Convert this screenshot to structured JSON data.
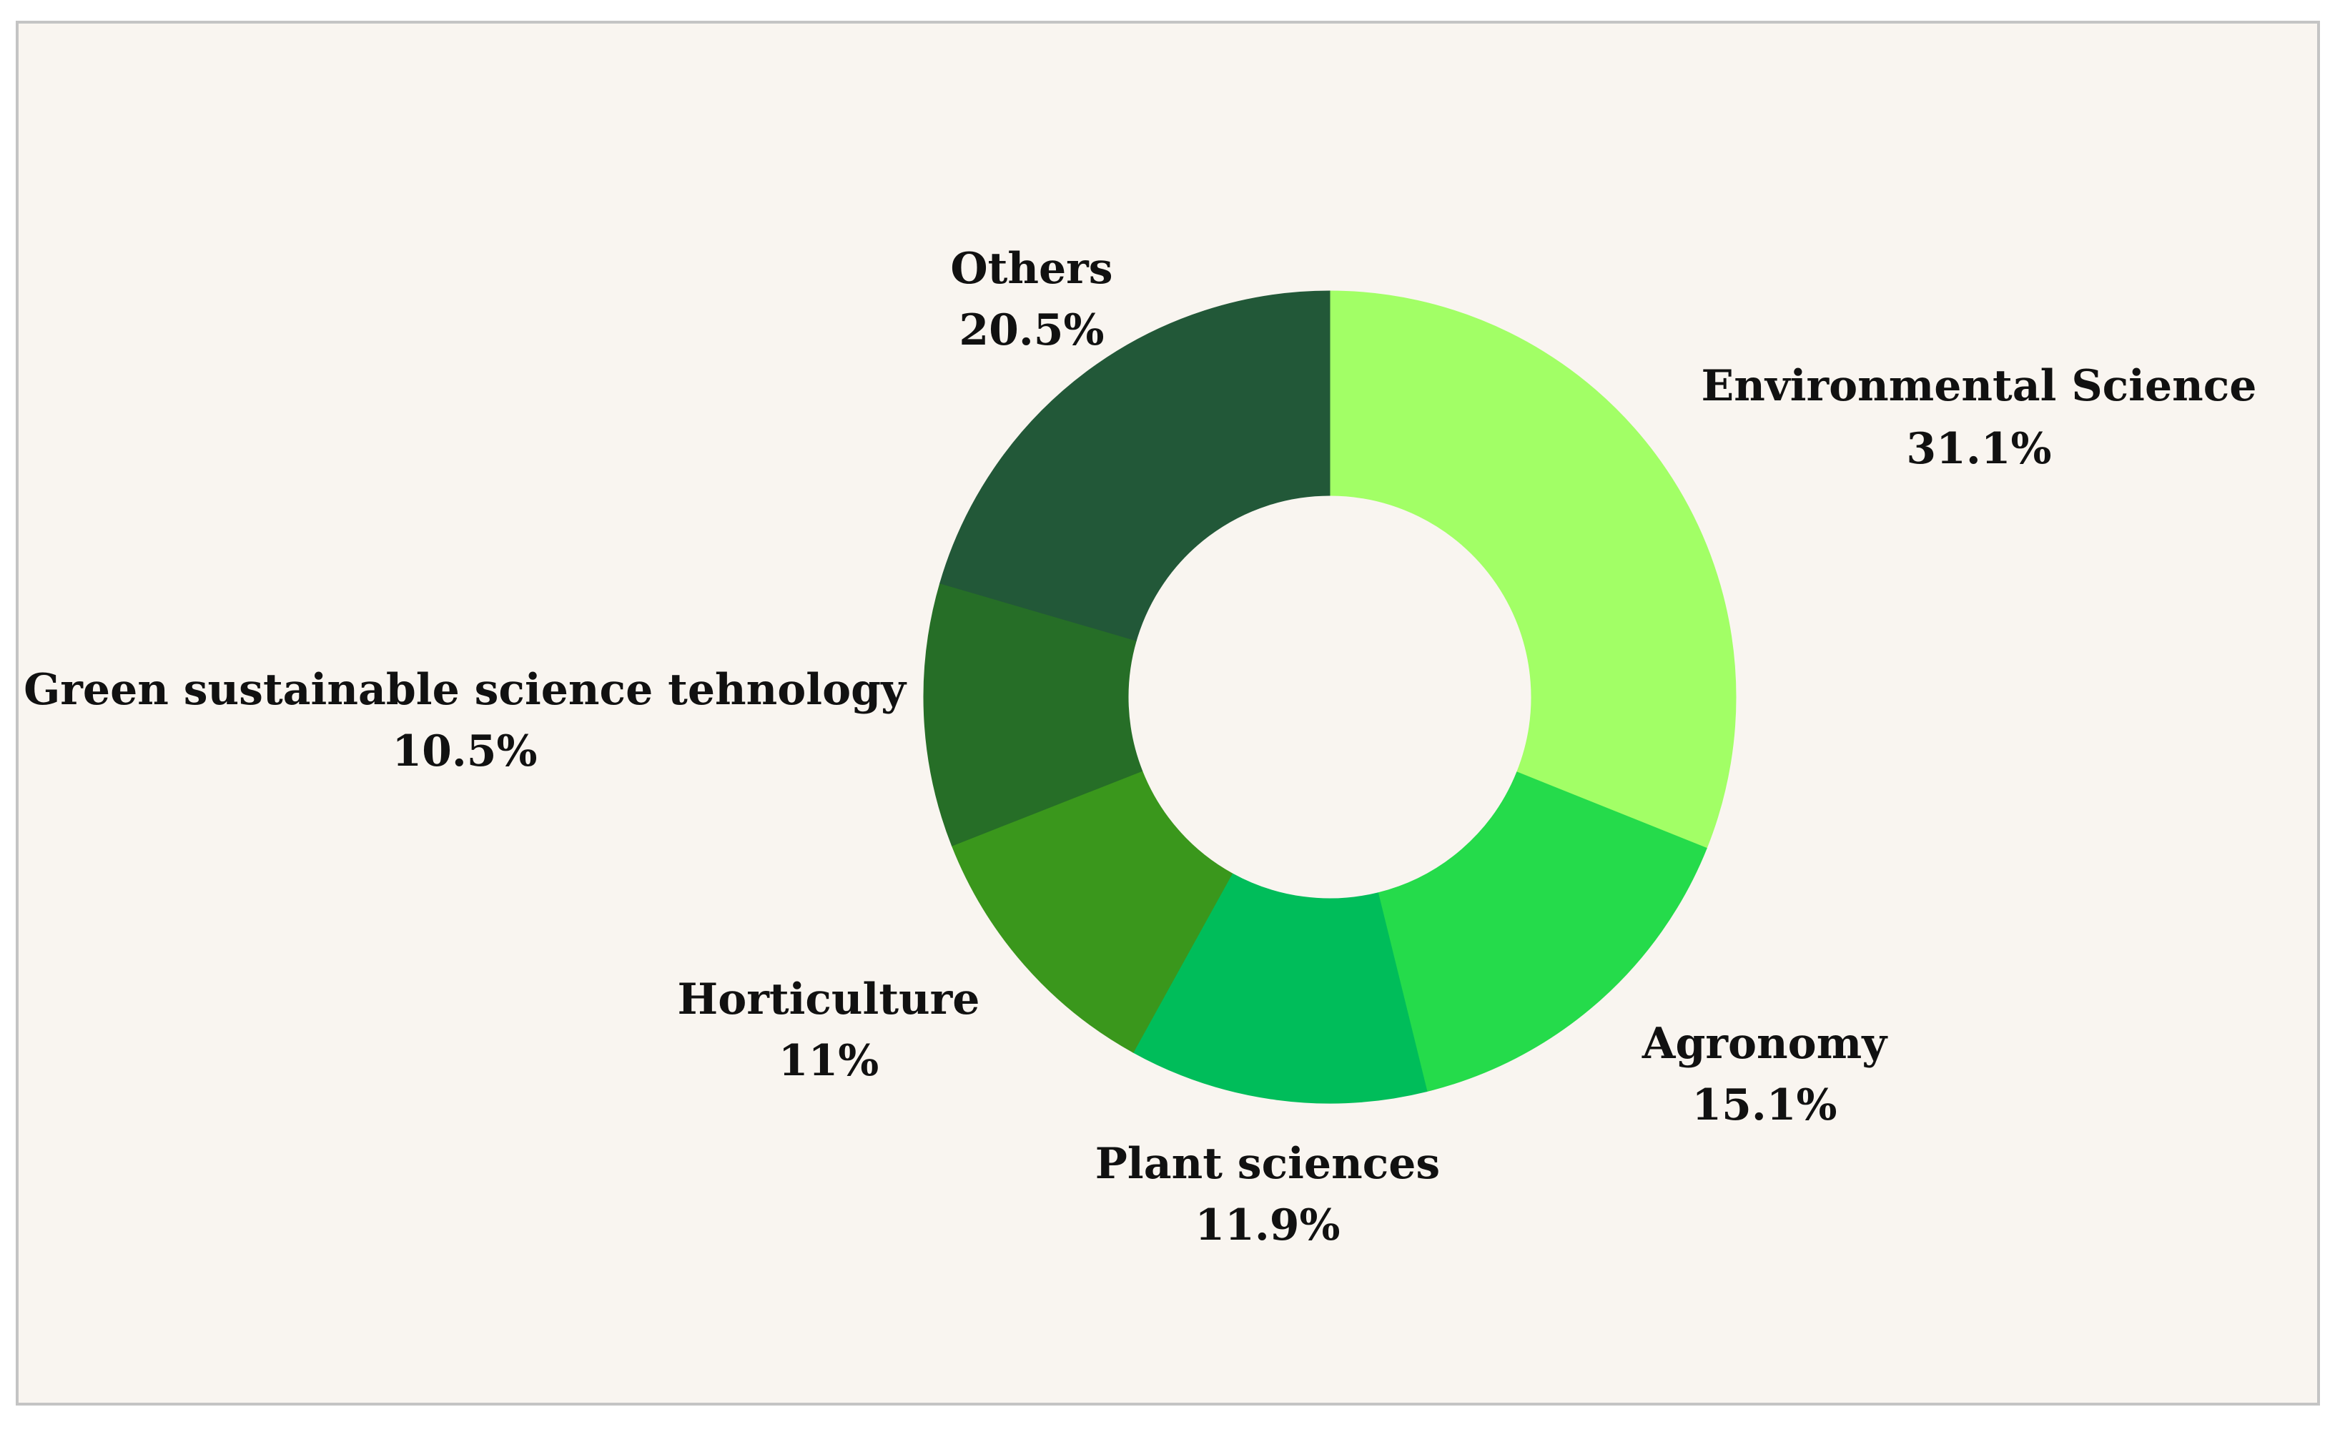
{
  "chart_data": {
    "type": "pie",
    "variant": "donut",
    "title": "",
    "slices": [
      {
        "label": "Environmental Science",
        "value": 31.1,
        "value_label": "31.1%",
        "color": "#a2ff66"
      },
      {
        "label": "Agronomy",
        "value": 15.1,
        "value_label": "15.1%",
        "color": "#25db4b"
      },
      {
        "label": "Plant sciences",
        "value": 11.9,
        "value_label": "11.9%",
        "color": "#00bd5a"
      },
      {
        "label": "Horticulture",
        "value": 11,
        "value_label": "11%",
        "color": "#3a971c"
      },
      {
        "label": "Green sustainable science tehnology",
        "value": 10.5,
        "value_label": "10.5%",
        "color": "#266e27"
      },
      {
        "label": "Others",
        "value": 20.5,
        "value_label": "20.5%",
        "color": "#225838"
      }
    ],
    "start_angle": "12 o'clock",
    "direction": "clockwise",
    "legend": "none",
    "background_color": "#f9f5f0"
  }
}
